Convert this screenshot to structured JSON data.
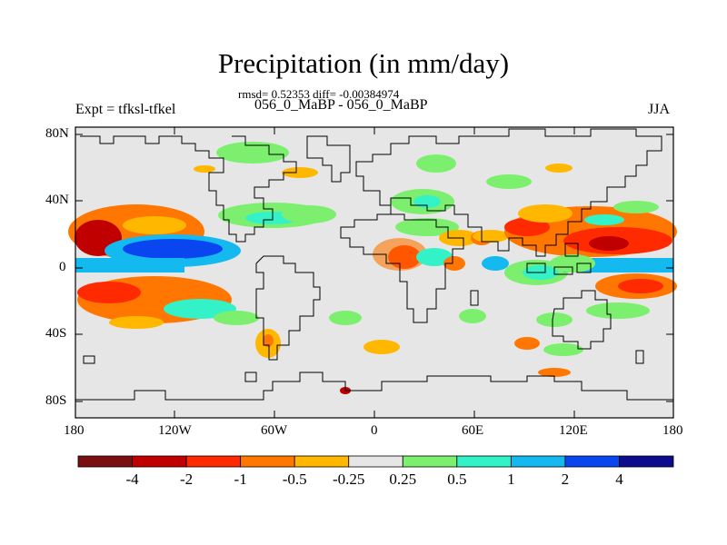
{
  "title": "Precipitation (in mm/day)",
  "stats": "rmsd= 0.52353 diff= -0.00384974",
  "cases": "056_0_MaBP - 056_0_MaBP",
  "experiment": "Expt = tfksl-tfkel",
  "season": "JJA",
  "lat_ticks": [
    "80N",
    "40N",
    "0",
    "40S",
    "80S"
  ],
  "lon_ticks": [
    "180",
    "120W",
    "60W",
    "0",
    "60E",
    "120E",
    "180"
  ],
  "colorbar": {
    "labels": [
      "-4",
      "-2",
      "-1",
      "-0.5",
      "-0.25",
      "0.25",
      "0.5",
      "1",
      "2",
      "4"
    ],
    "colors": [
      "#7a0f0f",
      "#c00000",
      "#ff2a00",
      "#ff7700",
      "#ffb700",
      "#e6e6e6",
      "#7cf06e",
      "#33f2c8",
      "#14b9f0",
      "#0a46f0",
      "#0c0c8c"
    ]
  },
  "background_color": "#e6e6e6"
}
